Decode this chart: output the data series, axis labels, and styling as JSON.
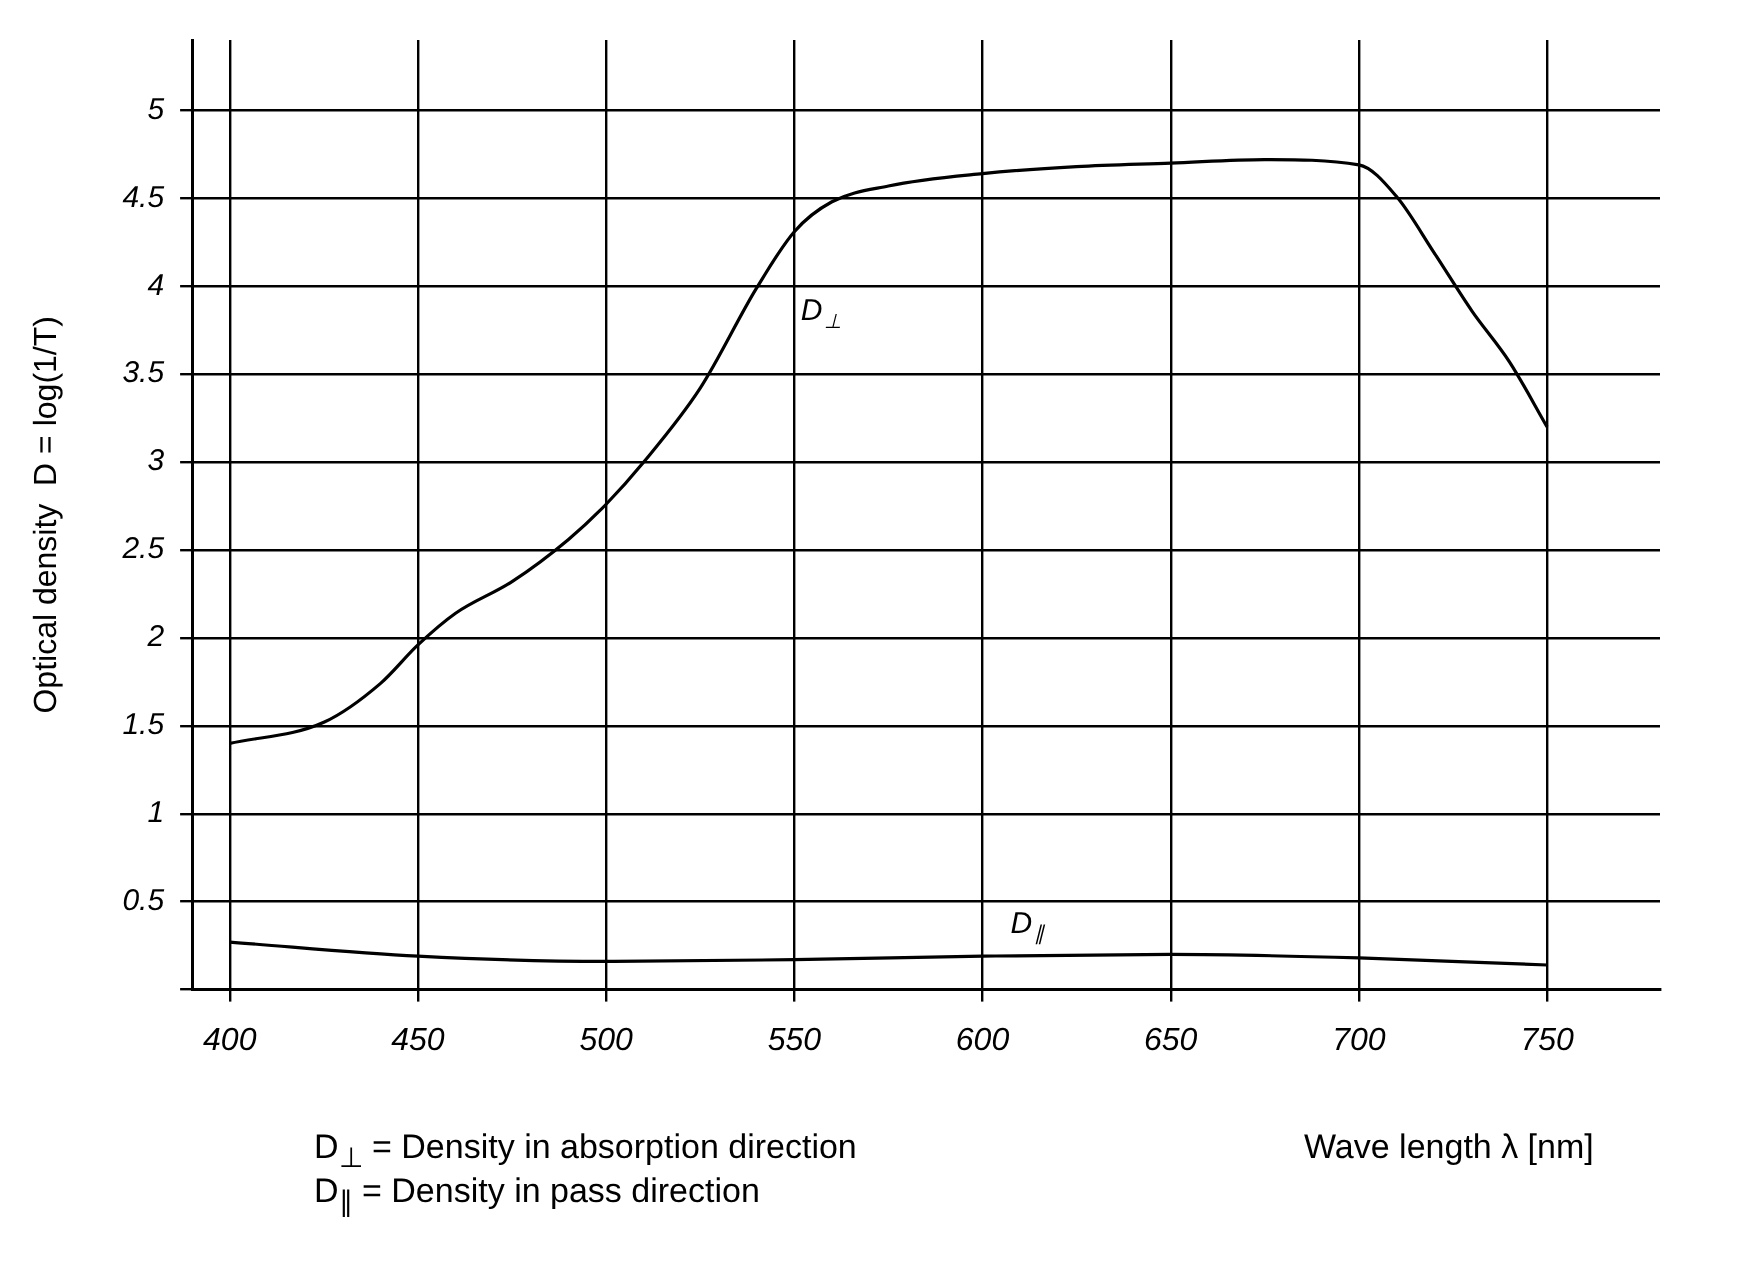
{
  "chart_data": {
    "type": "line",
    "ylabel": "Optical density  D = log(1/T)",
    "xlabel": "Wave length λ [nm]",
    "annotations": [
      "D$_{⊥}$ = Density in absorption direction",
      "D$_{∥}$ = Density in pass direction"
    ],
    "xlim": [
      390,
      780
    ],
    "xticks": [
      400,
      450,
      500,
      550,
      600,
      650,
      700,
      750
    ],
    "ylim": [
      0,
      5.4
    ],
    "yticks": [
      {
        "value": 0,
        "label": null
      },
      0.5,
      1,
      1.5,
      2,
      2.5,
      3,
      3.5,
      4,
      4.5,
      5
    ],
    "grid": true,
    "legend": false,
    "marker": "none",
    "line_style": "solid",
    "series": [
      {
        "name": "D$_{⊥}$",
        "color": "#000000",
        "x": [
          400,
          425,
          440,
          450,
          460,
          475,
          490,
          500,
          510,
          525,
          540,
          550,
          560,
          575,
          600,
          625,
          650,
          675,
          700,
          710,
          720,
          730,
          740,
          750
        ],
        "values": [
          1.4,
          1.52,
          1.74,
          1.96,
          2.14,
          2.32,
          2.56,
          2.76,
          3.0,
          3.42,
          3.99,
          4.31,
          4.48,
          4.57,
          4.64,
          4.68,
          4.7,
          4.72,
          4.69,
          4.51,
          4.19,
          3.86,
          3.57,
          3.2
        ]
      },
      {
        "name": "D$_{∥}$",
        "color": "#000000",
        "x": [
          400,
          450,
          500,
          550,
          600,
          650,
          700,
          750
        ],
        "values": [
          0.27,
          0.19,
          0.16,
          0.17,
          0.19,
          0.2,
          0.18,
          0.14
        ]
      }
    ]
  }
}
